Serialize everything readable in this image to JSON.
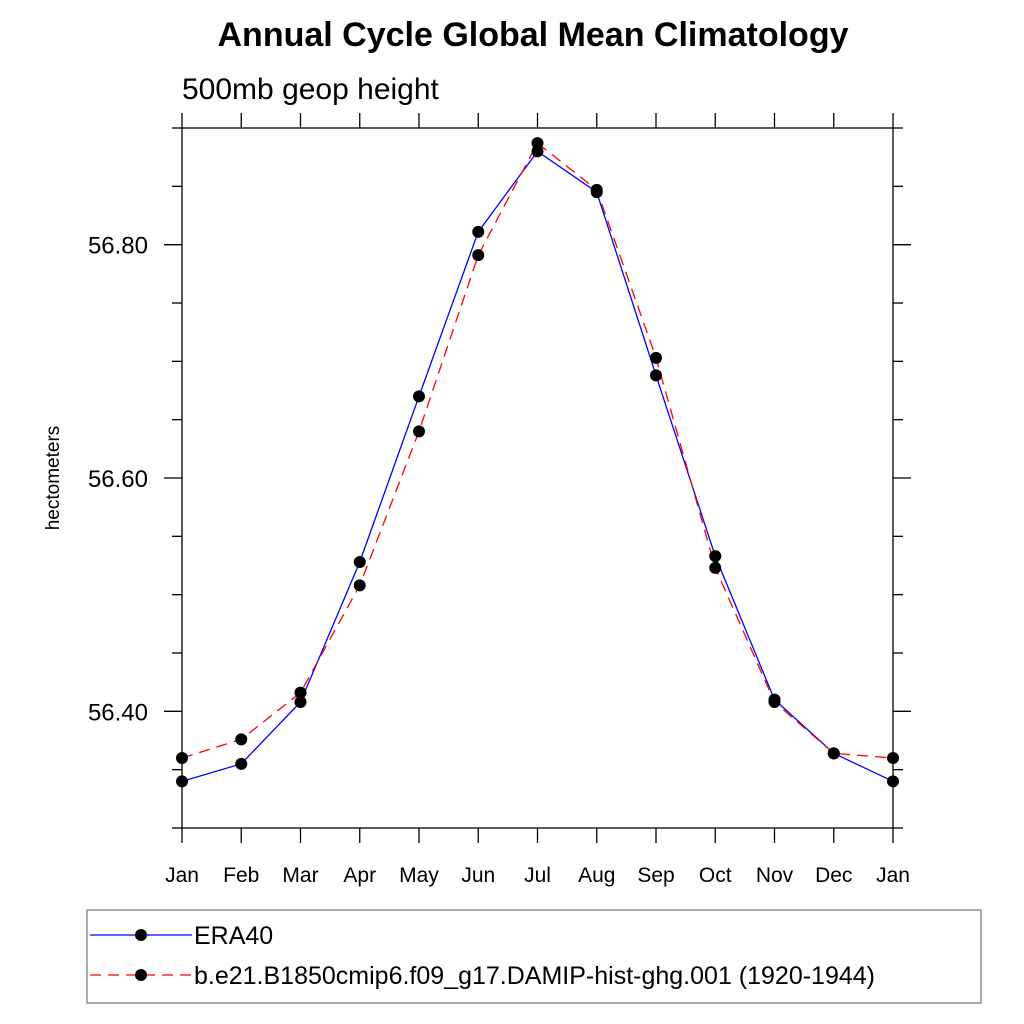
{
  "chart_data": {
    "type": "line",
    "title": "Annual Cycle Global Mean Climatology",
    "subtitle": "500mb geop height",
    "ylabel": "hectometers",
    "xlabel": "",
    "categories": [
      "Jan",
      "Feb",
      "Mar",
      "Apr",
      "May",
      "Jun",
      "Jul",
      "Aug",
      "Sep",
      "Oct",
      "Nov",
      "Dec",
      "Jan"
    ],
    "ylim": [
      56.3,
      56.9
    ],
    "yticks_major": [
      56.4,
      56.6,
      56.8
    ],
    "yticks_major_labels": [
      "56.40",
      "56.60",
      "56.80"
    ],
    "grid": false,
    "legend_position": "bottom",
    "series": [
      {
        "name": "ERA40",
        "color": "#0000ff",
        "dash": "solid",
        "marker": "circle",
        "values": [
          56.34,
          56.355,
          56.408,
          56.528,
          56.67,
          56.811,
          56.88,
          56.845,
          56.688,
          56.533,
          56.41,
          56.364,
          56.34
        ]
      },
      {
        "name": "b.e21.B1850cmip6.f09_g17.DAMIP-hist-ghg.001 (1920-1944)",
        "color": "#ff0000",
        "dash": "dashed",
        "marker": "circle",
        "values": [
          56.36,
          56.376,
          56.416,
          56.508,
          56.64,
          56.791,
          56.887,
          56.847,
          56.703,
          56.523,
          56.408,
          56.364,
          56.36
        ]
      }
    ]
  }
}
